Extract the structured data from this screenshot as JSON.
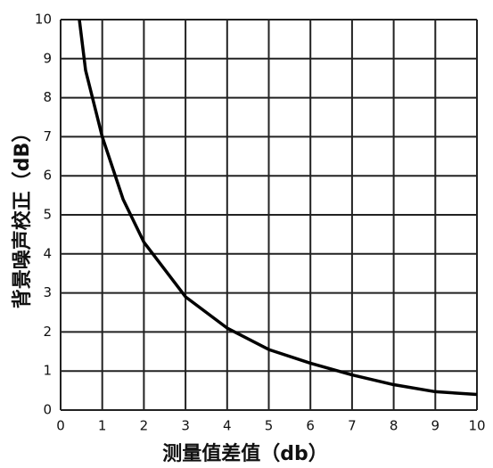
{
  "chart_data": {
    "type": "line",
    "x_label": "测量值差值（db）",
    "y_label": "背景噪声校正（dB）",
    "x": [
      0.45,
      0.6,
      1,
      1.5,
      2,
      3,
      4,
      5,
      6,
      7,
      8,
      9,
      10
    ],
    "series": [
      {
        "color": "#000000",
        "values": [
          10,
          8.7,
          7,
          5.4,
          4.3,
          2.9,
          2.1,
          1.55,
          1.2,
          0.9,
          0.65,
          0.47,
          0.4
        ]
      }
    ],
    "xlim": [
      0,
      10
    ],
    "xticks": [
      0,
      1,
      2,
      3,
      4,
      5,
      6,
      7,
      8,
      9,
      10
    ],
    "ylim": [
      0,
      10
    ],
    "yticks": [
      0,
      1,
      2,
      3,
      4,
      5,
      6,
      7,
      8,
      9,
      10
    ],
    "grid": true
  }
}
